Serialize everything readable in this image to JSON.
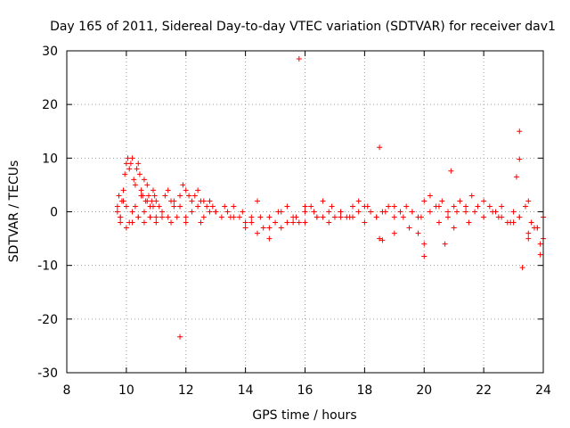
{
  "chart_data": {
    "type": "scatter",
    "title": "Day 165 of 2011, Sidereal Day-to-day VTEC variation (SDTVAR) for receiver dav1",
    "xlabel": "GPS time / hours",
    "ylabel": "SDTVAR / TECUs",
    "xlim": [
      8,
      24
    ],
    "ylim": [
      -30,
      30
    ],
    "xticks": [
      8,
      10,
      12,
      14,
      16,
      18,
      20,
      22,
      24
    ],
    "yticks": [
      -30,
      -20,
      -10,
      0,
      10,
      20,
      30
    ],
    "grid": true,
    "marker": "+",
    "color": "#ff0000",
    "series": [
      {
        "name": "SDTVAR",
        "x": [
          9.7,
          9.75,
          9.8,
          9.85,
          9.9,
          9.95,
          10.0,
          10.05,
          10.1,
          10.15,
          10.2,
          10.25,
          10.3,
          10.35,
          10.4,
          10.45,
          10.5,
          10.55,
          10.6,
          10.65,
          10.7,
          10.75,
          10.8,
          10.85,
          10.9,
          10.95,
          11.0,
          11.1,
          11.2,
          11.3,
          11.4,
          11.5,
          11.6,
          11.7,
          11.8,
          11.9,
          12.0,
          12.1,
          12.2,
          12.3,
          12.4,
          12.5,
          12.6,
          12.7,
          12.8,
          12.9,
          13.0,
          13.2,
          13.4,
          13.6,
          13.8,
          14.0,
          14.2,
          14.4,
          14.6,
          14.8,
          15.0,
          15.2,
          15.4,
          15.6,
          15.8,
          16.0,
          16.2,
          16.4,
          16.6,
          16.8,
          17.0,
          17.2,
          17.4,
          17.6,
          17.8,
          18.0,
          18.2,
          18.4,
          18.6,
          18.8,
          19.0,
          19.2,
          19.4,
          19.6,
          19.8,
          20.0,
          20.2,
          20.4,
          20.6,
          20.8,
          21.0,
          21.2,
          21.4,
          21.6,
          21.8,
          22.0,
          22.2,
          22.4,
          22.6,
          22.8,
          23.0,
          23.2,
          23.4,
          23.6,
          23.8,
          24.0,
          9.7,
          9.8,
          9.9,
          10.0,
          10.1,
          10.2,
          10.3,
          10.4,
          10.5,
          10.6,
          10.7,
          10.8,
          10.9,
          11.0,
          11.2,
          11.4,
          11.6,
          11.8,
          12.0,
          12.2,
          12.4,
          12.6,
          12.8,
          13.0,
          13.3,
          13.6,
          13.9,
          14.2,
          14.5,
          14.8,
          15.1,
          15.4,
          15.7,
          16.0,
          16.3,
          16.6,
          16.9,
          17.2,
          17.5,
          17.8,
          18.1,
          18.4,
          18.7,
          19.0,
          19.3,
          19.6,
          19.9,
          20.2,
          20.5,
          20.8,
          21.1,
          21.4,
          21.7,
          22.0,
          22.3,
          22.6,
          22.9,
          23.2,
          23.5,
          23.8,
          9.8,
          10.0,
          10.2,
          10.4,
          10.6,
          10.8,
          11.0,
          11.5,
          12.0,
          12.5,
          13.0,
          13.5,
          14.0,
          14.4,
          14.8,
          15.2,
          15.6,
          16.0,
          16.4,
          16.8,
          17.2,
          17.6,
          18.0,
          18.5,
          19.0,
          19.5,
          20.0,
          20.5,
          21.0,
          21.5,
          22.0,
          22.5,
          23.0,
          23.5,
          24.0,
          15.8,
          11.8,
          18.5,
          20.9,
          20.0,
          23.2,
          23.2,
          23.1,
          23.3,
          23.5,
          23.9,
          23.9,
          20.7,
          18.6,
          19.8,
          23.7
        ],
        "values": [
          1,
          3,
          -1,
          2,
          4,
          7,
          9,
          10,
          8,
          9,
          10,
          6,
          5,
          8,
          9,
          7,
          4,
          3,
          6,
          2,
          5,
          3,
          1,
          2,
          4,
          3,
          2,
          1,
          -1,
          3,
          4,
          2,
          1,
          -1,
          3,
          5,
          4,
          3,
          2,
          3,
          4,
          2,
          2,
          1,
          0,
          1,
          0,
          -1,
          0,
          1,
          -1,
          -2,
          -1,
          2,
          -3,
          -1,
          -2,
          0,
          1,
          -1,
          -2,
          0,
          1,
          -1,
          2,
          0,
          -1,
          0,
          -1,
          1,
          2,
          1,
          0,
          -1,
          0,
          1,
          -1,
          0,
          1,
          0,
          -1,
          2,
          3,
          1,
          2,
          0,
          1,
          2,
          0,
          3,
          1,
          2,
          1,
          0,
          -1,
          -2,
          0,
          -1,
          1,
          -2,
          -3,
          -1,
          0,
          -1,
          2,
          1,
          -2,
          0,
          1,
          -1,
          3,
          0,
          2,
          -1,
          1,
          -2,
          0,
          -1,
          2,
          1,
          -2,
          0,
          1,
          -1,
          2,
          0,
          1,
          -1,
          0,
          -2,
          -1,
          -3,
          0,
          -2,
          -1,
          1,
          0,
          -1,
          1,
          0,
          -1,
          0,
          1,
          -1,
          0,
          1,
          -1,
          0,
          -1,
          0,
          1,
          -1,
          0,
          1,
          0,
          -1,
          0,
          1,
          -2,
          -1,
          2,
          -3,
          -2,
          -3,
          -2,
          -1,
          -2,
          -1,
          -1,
          -2,
          -1,
          -2,
          0,
          -1,
          -3,
          -4,
          -5,
          -3,
          -2,
          -2,
          -1,
          -2,
          -1,
          -1,
          -2,
          -5,
          -4,
          -3,
          -6,
          -2,
          -3,
          -2,
          -1,
          -1,
          -2,
          -4,
          -5,
          28.5,
          -23.3,
          12.0,
          7.6,
          -8.3,
          15.0,
          9.8,
          6.5,
          -10.4,
          -5.0,
          -8.0,
          -6.0,
          -6.0,
          -5.3,
          -4.0,
          -3.0
        ]
      }
    ]
  }
}
